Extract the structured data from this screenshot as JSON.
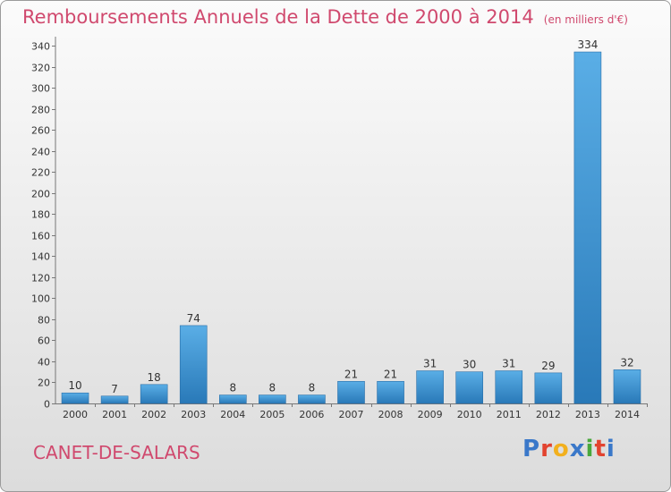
{
  "header": {
    "title": "Remboursements Annuels de la Dette de 2000 à 2014",
    "subtitle": "(en milliers d'€)"
  },
  "footer": {
    "place_name": "CANET-DE-SALARS",
    "brand": "Proxiti"
  },
  "colors": {
    "title": "#d0496e",
    "bar_light": "#5aaee6",
    "bar_dark": "#2979b8",
    "logo": [
      "#3a78c9",
      "#e2432f",
      "#f2b01e",
      "#3a78c9",
      "#49a83c",
      "#e2432f",
      "#3a78c9"
    ]
  },
  "chart_data": {
    "type": "bar",
    "title": "Remboursements Annuels de la Dette de 2000 à 2014",
    "subtitle": "(en milliers d'€)",
    "categories": [
      "2000",
      "2001",
      "2002",
      "2003",
      "2004",
      "2005",
      "2006",
      "2007",
      "2008",
      "2009",
      "2010",
      "2011",
      "2012",
      "2013",
      "2014"
    ],
    "values": [
      10,
      7,
      18,
      74,
      8,
      8,
      8,
      21,
      21,
      31,
      30,
      31,
      29,
      334,
      32
    ],
    "ylim": [
      0,
      340
    ],
    "yticks": [
      0,
      20,
      40,
      60,
      80,
      100,
      120,
      140,
      160,
      180,
      200,
      220,
      240,
      260,
      280,
      300,
      320,
      340
    ],
    "grid": false,
    "legend": "none"
  }
}
